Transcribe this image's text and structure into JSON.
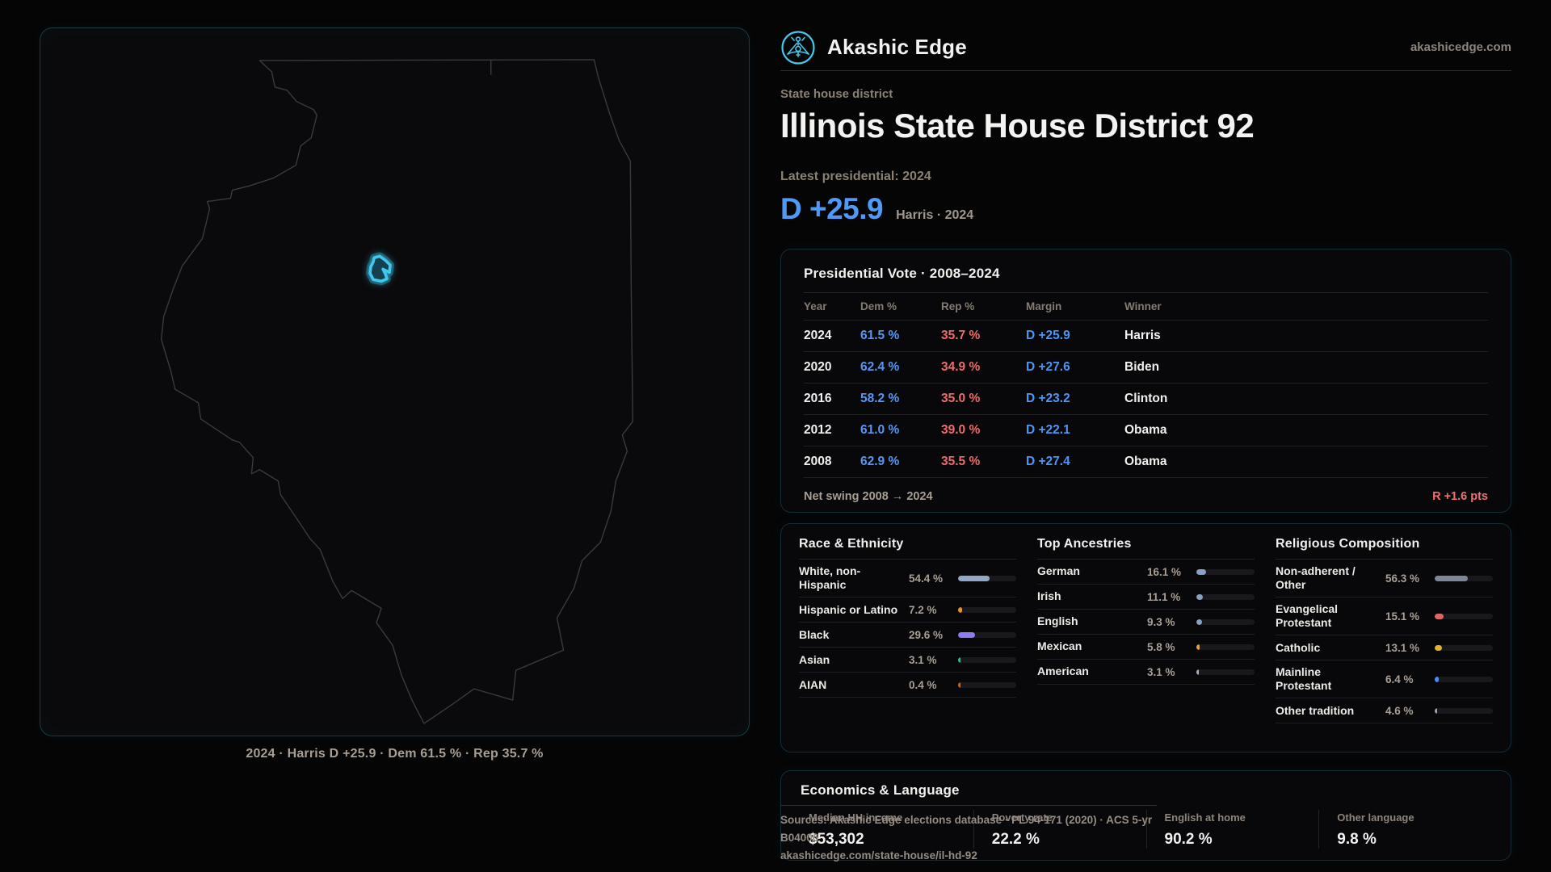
{
  "brand": {
    "name": "Akashic Edge",
    "domain": "akashicedge.com"
  },
  "header": {
    "kicker": "State house district",
    "title": "Illinois State House District 92",
    "subtitle": "Latest presidential: 2024",
    "margin_big": "D +25.9",
    "margin_context": "Harris · 2024"
  },
  "map": {
    "state": "Illinois",
    "caption": "2024 · Harris D +25.9 · Dem 61.5 % · Rep 35.7 %",
    "accent_color": "#3fc9ee"
  },
  "presidential": {
    "title": "Presidential Vote · 2008–2024",
    "columns": [
      "Year",
      "Dem %",
      "Rep %",
      "Margin",
      "Winner"
    ],
    "rows": [
      {
        "year": "2024",
        "dem": "61.5 %",
        "rep": "35.7 %",
        "margin": "D +25.9",
        "winner": "Harris"
      },
      {
        "year": "2020",
        "dem": "62.4 %",
        "rep": "34.9 %",
        "margin": "D +27.6",
        "winner": "Biden"
      },
      {
        "year": "2016",
        "dem": "58.2 %",
        "rep": "35.0 %",
        "margin": "D +23.2",
        "winner": "Clinton"
      },
      {
        "year": "2012",
        "dem": "61.0 %",
        "rep": "39.0 %",
        "margin": "D +22.1",
        "winner": "Obama"
      },
      {
        "year": "2008",
        "dem": "62.9 %",
        "rep": "35.5 %",
        "margin": "D +27.4",
        "winner": "Obama"
      }
    ],
    "net_swing_label": "Net swing 2008 → 2024",
    "net_swing_value": "R +1.6 pts"
  },
  "demographics": {
    "race": {
      "title": "Race & Ethnicity",
      "items": [
        {
          "label": "White, non-Hispanic",
          "value": "54.4 %",
          "pct": 54.4,
          "color": "#93a7c6"
        },
        {
          "label": "Hispanic or Latino",
          "value": "7.2 %",
          "pct": 7.2,
          "color": "#e0962e"
        },
        {
          "label": "Black",
          "value": "29.6 %",
          "pct": 29.6,
          "color": "#8d7cf3"
        },
        {
          "label": "Asian",
          "value": "3.1 %",
          "pct": 3.1,
          "color": "#2bbd8e"
        },
        {
          "label": "AIAN",
          "value": "0.4 %",
          "pct": 0.4,
          "color": "#c0681f"
        }
      ]
    },
    "ancestries": {
      "title": "Top Ancestries",
      "items": [
        {
          "label": "German",
          "value": "16.1 %",
          "pct": 16.1,
          "color": "#8aa0c0"
        },
        {
          "label": "Irish",
          "value": "11.1 %",
          "pct": 11.1,
          "color": "#8aa0c0"
        },
        {
          "label": "English",
          "value": "9.3 %",
          "pct": 9.3,
          "color": "#8aa0c0"
        },
        {
          "label": "Mexican",
          "value": "5.8 %",
          "pct": 5.8,
          "color": "#e0a12e"
        },
        {
          "label": "American",
          "value": "3.1 %",
          "pct": 3.1,
          "color": "#9fb0c9"
        }
      ]
    },
    "religion": {
      "title": "Religious Composition",
      "items": [
        {
          "label": "Non-adherent / Other",
          "value": "56.3 %",
          "pct": 56.3,
          "color": "#7e8798"
        },
        {
          "label": "Evangelical Protestant",
          "value": "15.1 %",
          "pct": 15.1,
          "color": "#dd6666"
        },
        {
          "label": "Catholic",
          "value": "13.1 %",
          "pct": 13.1,
          "color": "#e0b22e"
        },
        {
          "label": "Mainline Protestant",
          "value": "6.4 %",
          "pct": 6.4,
          "color": "#4b8df2"
        },
        {
          "label": "Other tradition",
          "value": "4.6 %",
          "pct": 4.6,
          "color": "#9aa2ad"
        }
      ]
    }
  },
  "economics": {
    "title": "Economics & Language",
    "stats": [
      {
        "label": "Median HH income",
        "value": "$53,302"
      },
      {
        "label": "Poverty rate",
        "value": "22.2 %"
      },
      {
        "label": "English at home",
        "value": "90.2 %"
      },
      {
        "label": "Other language",
        "value": "9.8 %"
      }
    ]
  },
  "footer": {
    "sources": "Sources: Akashic Edge elections database · PL 94-171 (2020) · ACS 5-yr B04006",
    "permalink": "akashicedge.com/state-house/il-hd-92"
  }
}
